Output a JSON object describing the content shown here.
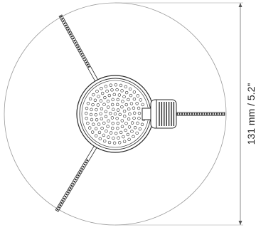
{
  "dimension": {
    "label": "131 mm / 5.2\""
  },
  "colors": {
    "outline": "#9a9a9a",
    "stroke": "#2a2a2a",
    "fill": "#ffffff"
  }
}
